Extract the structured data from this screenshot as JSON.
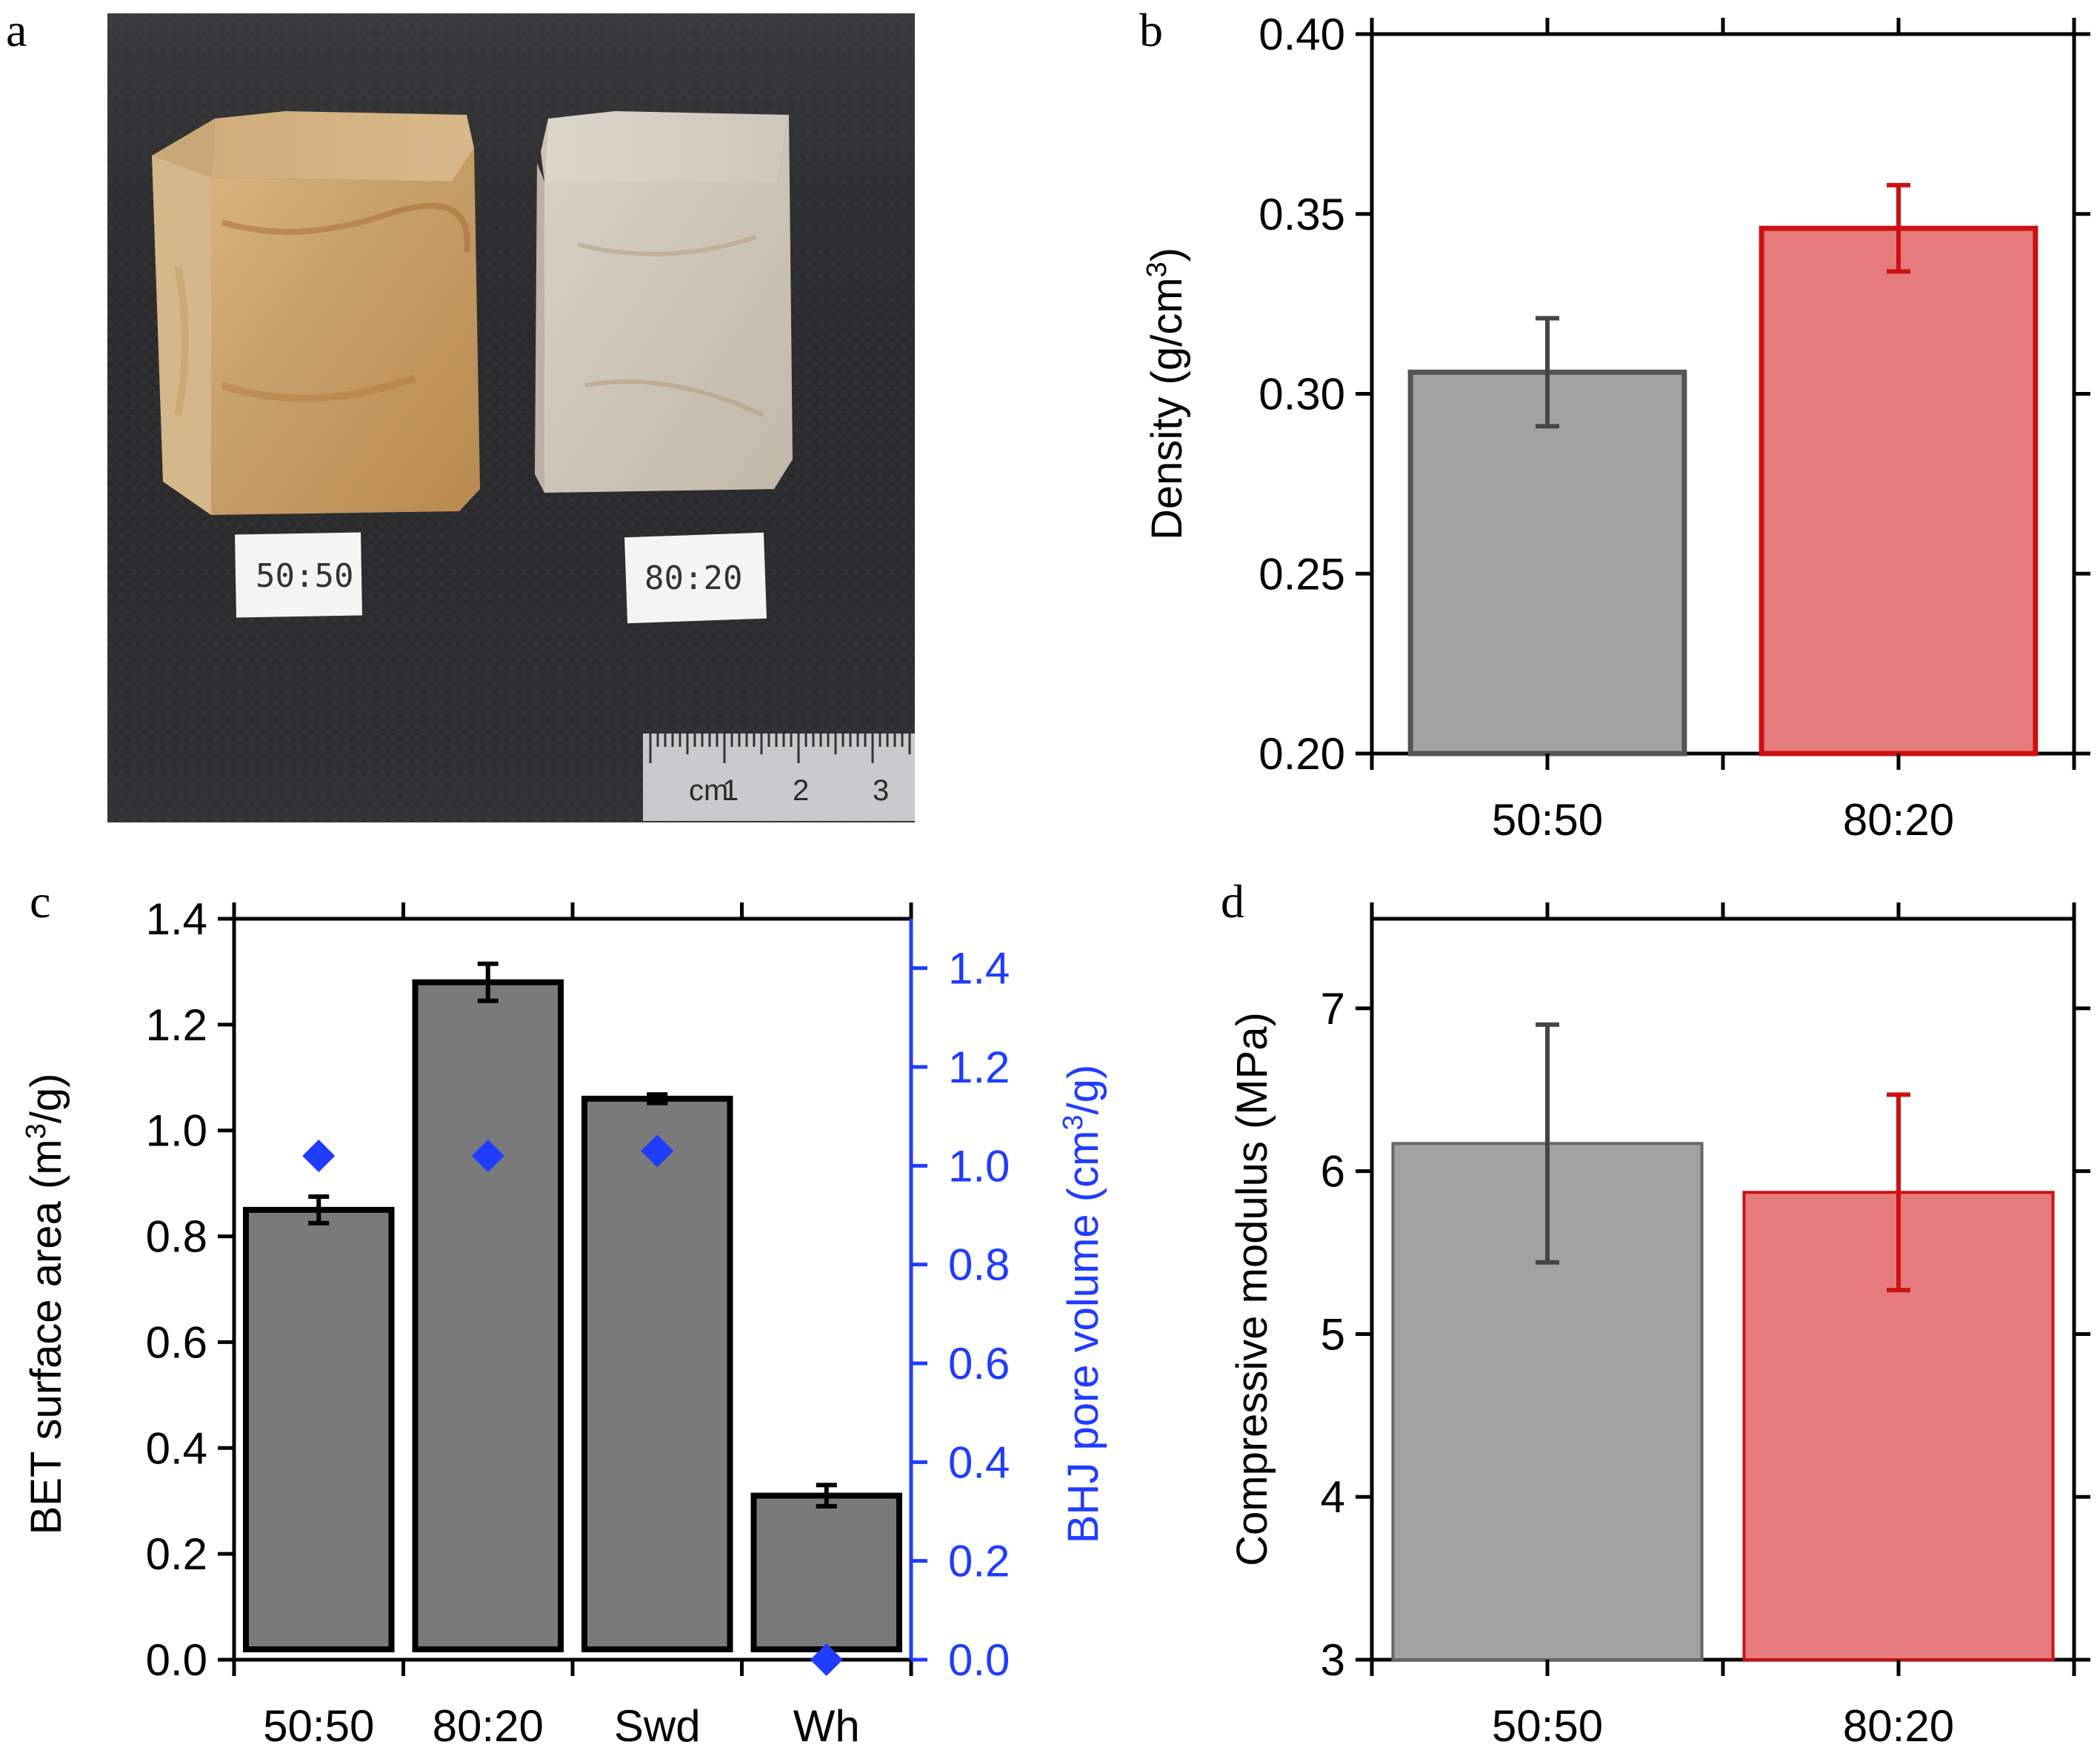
{
  "panels": {
    "a": {
      "label": "a",
      "sample_labels": [
        "50:50",
        "80:20"
      ],
      "ruler": {
        "unit": "cm",
        "ticks": [
          "1",
          "2",
          "3"
        ]
      }
    },
    "b": {
      "label": "b"
    },
    "c": {
      "label": "c"
    },
    "d": {
      "label": "d"
    }
  },
  "colors": {
    "gray_fill": "#a2a2a2",
    "gray_edge": "#555555",
    "red_fill": "#e57b7c",
    "red_edge": "#cc1111",
    "dark_fill": "#7a7a7a",
    "blue": "#1f3cff"
  },
  "chart_data": [
    {
      "panel": "b",
      "type": "bar",
      "categories": [
        "50:50",
        "80:20"
      ],
      "values": [
        0.306,
        0.346
      ],
      "errors": [
        0.015,
        0.012
      ],
      "ylabel": "Density (g/cm³)",
      "ylim": [
        0.2,
        0.4
      ],
      "yticks": [
        "0.20",
        "0.25",
        "0.30",
        "0.35",
        "0.40"
      ],
      "ytick_values": [
        0.2,
        0.25,
        0.3,
        0.35,
        0.4
      ]
    },
    {
      "panel": "c",
      "type": "bar",
      "categories": [
        "50:50",
        "80:20",
        "Swd",
        "Wh"
      ],
      "values": [
        0.85,
        1.28,
        1.06,
        0.31
      ],
      "errors": [
        0.025,
        0.035,
        0.008,
        0.02
      ],
      "ylabel": "BET surface area (m³/g)",
      "ylim": [
        0.0,
        1.4
      ],
      "yticks": [
        "0.0",
        "0.2",
        "0.4",
        "0.6",
        "0.8",
        "1.0",
        "1.2",
        "1.4"
      ],
      "ytick_values": [
        0.0,
        0.2,
        0.4,
        0.6,
        0.8,
        1.0,
        1.2,
        1.4
      ],
      "secondary": {
        "type": "scatter",
        "marker": "diamond",
        "values": [
          1.02,
          1.02,
          1.03,
          0.0
        ],
        "ylabel": "BHJ pore volume (cm³/g)",
        "ylim": [
          0.0,
          1.5
        ],
        "yticks": [
          "0.0",
          "0.2",
          "0.4",
          "0.6",
          "0.8",
          "1.0",
          "1.2",
          "1.4"
        ],
        "ytick_values": [
          0.0,
          0.2,
          0.4,
          0.6,
          0.8,
          1.0,
          1.2,
          1.4
        ]
      }
    },
    {
      "panel": "d",
      "type": "bar",
      "categories": [
        "50:50",
        "80:20"
      ],
      "values": [
        6.17,
        5.87
      ],
      "errors": [
        0.73,
        0.6
      ],
      "ylabel": "Compressive modulus (MPa)",
      "ylim": [
        3.0,
        7.55
      ],
      "yticks": [
        "3",
        "4",
        "5",
        "6",
        "7"
      ],
      "ytick_values": [
        3,
        4,
        5,
        6,
        7
      ]
    }
  ]
}
